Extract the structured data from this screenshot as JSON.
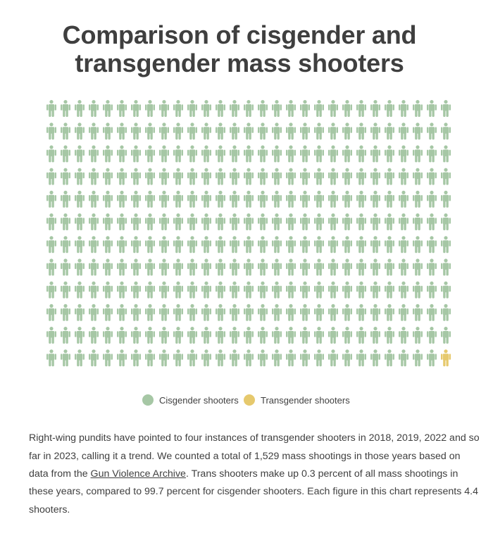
{
  "title": {
    "line1": "Comparison of cisgender and",
    "line2": "transgender mass shooters"
  },
  "colors": {
    "cisgender": "#a6c7a5",
    "transgender": "#e6c96d",
    "text": "#3f3f3f"
  },
  "icon": "person-icon",
  "chart_data": {
    "type": "waffle",
    "unit_value": 4.4,
    "rows": 12,
    "columns": 29,
    "series": [
      {
        "name": "Cisgender shooters",
        "count": 347,
        "percent": 99.7
      },
      {
        "name": "Transgender shooters",
        "count": 1,
        "percent": 0.3
      }
    ],
    "total_mass_shootings": 1529
  },
  "legend": {
    "cis_label": "Cisgender shooters",
    "trans_label": "Transgender shooters"
  },
  "description": {
    "part1": "Right-wing pundits have pointed to four instances of transgender shooters in 2018, 2019, 2022 and so far in 2023, calling it a trend. We counted a total of 1,529 mass shootings in those years based on data from the ",
    "link_text": "Gun Violence Archive",
    "part2": ". Trans shooters make up 0.3 percent of all mass shootings in these years, compared to 99.7 percent for cisgender shooters. Each figure in this chart represents 4.4 shooters."
  }
}
